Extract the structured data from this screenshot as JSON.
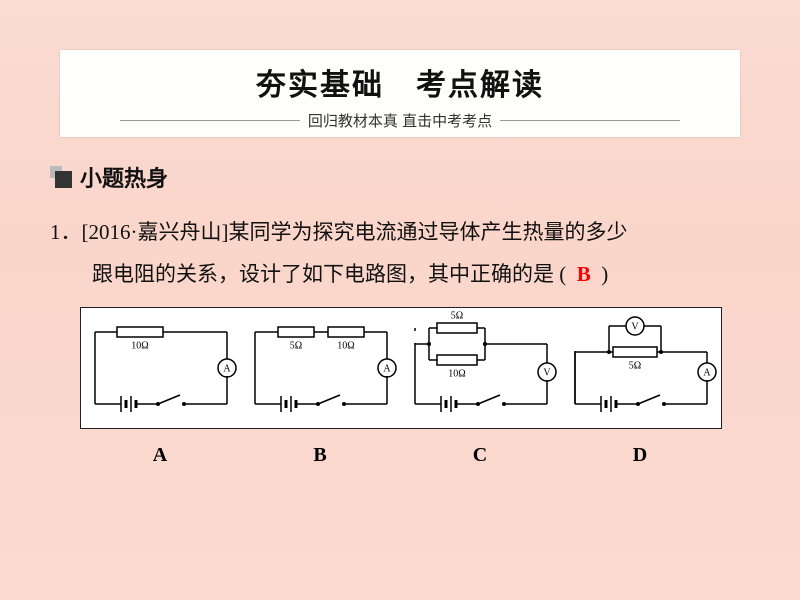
{
  "header": {
    "title": "夯实基础　考点解读",
    "subtitle": "回归教材本真 直击中考考点"
  },
  "section": {
    "label": "小题热身"
  },
  "question": {
    "number": "1．",
    "source": "[2016·嘉兴舟山]",
    "line1": "某同学为探究电流通过导体产生热量的多少",
    "line2_a": "跟电阻的关系，设计了如下电路图，其中正确的是",
    "paren_open": "(",
    "answer": "B",
    "paren_close": ")"
  },
  "options": {
    "a": "A",
    "b": "B",
    "c": "C",
    "d": "D"
  },
  "diagram": {
    "background": "#ffffff",
    "stroke": "#000000",
    "stroke_width": 1.5,
    "font_family": "Times New Roman, serif",
    "label_font_size": 10,
    "circuits": [
      {
        "id": "A",
        "battery": true,
        "switch": true,
        "meter": "A",
        "topology": "series-single",
        "resistors": [
          {
            "label": "10Ω"
          }
        ]
      },
      {
        "id": "B",
        "battery": true,
        "switch": true,
        "meter": "A",
        "topology": "series-two",
        "resistors": [
          {
            "label": "5Ω"
          },
          {
            "label": "10Ω"
          }
        ]
      },
      {
        "id": "C",
        "battery": true,
        "switch": true,
        "meter": "V",
        "topology": "parallel-two",
        "resistors": [
          {
            "label": "5Ω"
          },
          {
            "label": "10Ω"
          }
        ]
      },
      {
        "id": "D",
        "battery": true,
        "switch": true,
        "meter_top": "V",
        "meter_side": "A",
        "topology": "series-single-voltmeter",
        "resistors": [
          {
            "label": "5Ω"
          }
        ]
      }
    ]
  }
}
